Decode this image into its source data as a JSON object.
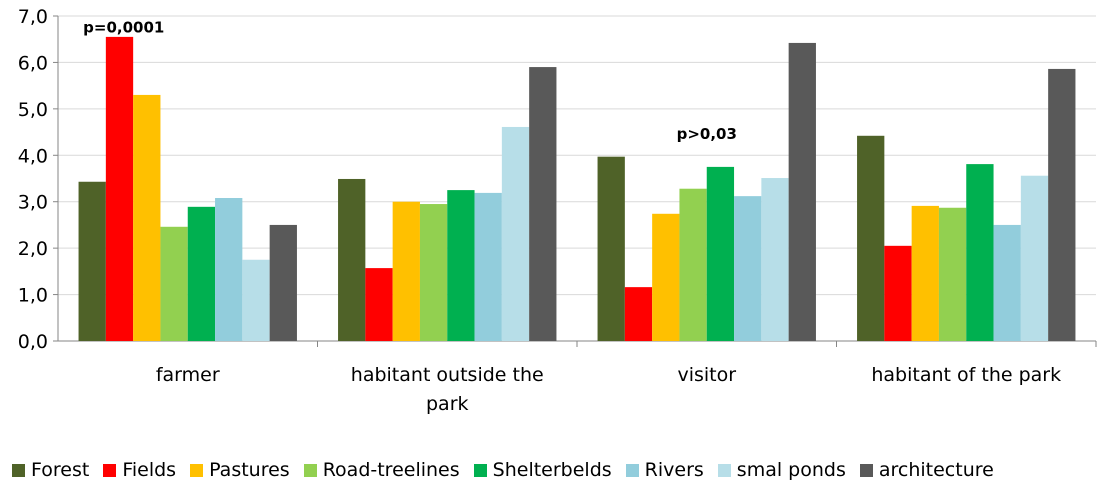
{
  "chart_data": {
    "type": "bar",
    "categories": [
      "farmer",
      "habitant outside the park",
      "visitor",
      "habitant of the park"
    ],
    "ylim": [
      0,
      7
    ],
    "yticks": [
      "0,0",
      "1,0",
      "2,0",
      "3,0",
      "4,0",
      "5,0",
      "6,0",
      "7,0"
    ],
    "grid": true,
    "legend_position": "bottom",
    "series": [
      {
        "name": "Forest",
        "color": "#4F6228",
        "values": [
          3.43,
          3.49,
          3.97,
          4.42
        ]
      },
      {
        "name": "Fields",
        "color": "#FF0000",
        "values": [
          6.55,
          1.57,
          1.16,
          2.05
        ]
      },
      {
        "name": "Pastures",
        "color": "#FFC000",
        "values": [
          5.3,
          3.0,
          2.74,
          2.91
        ]
      },
      {
        "name": "Road-treelines",
        "color": "#92D050",
        "values": [
          2.46,
          2.95,
          3.28,
          2.87
        ]
      },
      {
        "name": "Shelterbelds",
        "color": "#00B050",
        "values": [
          2.89,
          3.25,
          3.75,
          3.81
        ]
      },
      {
        "name": "Rivers",
        "color": "#92CDDC",
        "values": [
          3.08,
          3.19,
          3.12,
          2.5
        ]
      },
      {
        "name": "smal ponds",
        "color": "#B7DEE8",
        "values": [
          1.75,
          4.61,
          3.51,
          3.56
        ]
      },
      {
        "name": "architecture",
        "color": "#595959",
        "values": [
          2.5,
          5.9,
          6.42,
          5.86
        ]
      }
    ],
    "annotations": [
      {
        "text": "p=0,0001",
        "category": "farmer",
        "y": 6.65
      },
      {
        "text": "p>0,03",
        "category": "visitor",
        "y": 4.35
      }
    ]
  }
}
